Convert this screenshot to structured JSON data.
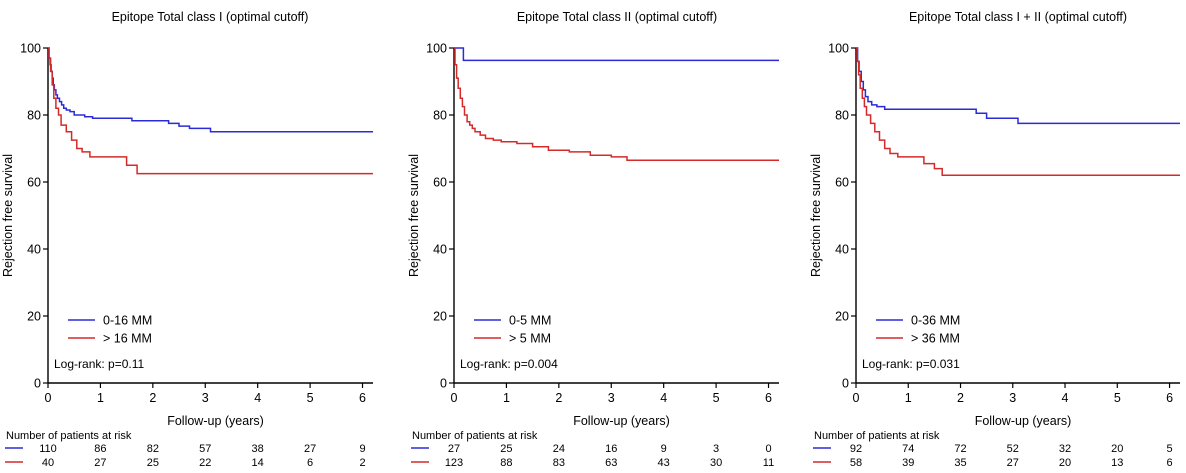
{
  "chart_data": [
    {
      "type": "line",
      "title": "Epitope Total class I (optimal cutoff)",
      "xlabel": "Follow-up (years)",
      "ylabel": "Rejection free survival",
      "xlim": [
        0,
        6.2
      ],
      "ylim": [
        0,
        100
      ],
      "xticks": [
        0,
        1,
        2,
        3,
        4,
        5,
        6
      ],
      "yticks": [
        0,
        20,
        40,
        60,
        80,
        100
      ],
      "grid": false,
      "legend_position": "bottom-left",
      "annotation": "Log-rank: p=0.11",
      "risk_table_title": "Number of patients at risk",
      "series": [
        {
          "name": "0-16 MM",
          "color": "#2b2bd6",
          "x": [
            0,
            0.02,
            0.04,
            0.06,
            0.08,
            0.1,
            0.12,
            0.15,
            0.18,
            0.22,
            0.26,
            0.3,
            0.35,
            0.42,
            0.5,
            0.6,
            0.7,
            0.85,
            1.2,
            1.6,
            2.3,
            2.5,
            2.7,
            3.1,
            6.2
          ],
          "y": [
            100,
            97,
            95,
            93,
            91,
            89,
            87.5,
            86,
            85,
            84,
            83,
            82,
            81.5,
            81,
            80,
            80,
            79.5,
            79,
            79,
            78.3,
            77.5,
            76.7,
            76,
            75,
            75
          ],
          "at_risk": [
            110,
            86,
            82,
            57,
            38,
            27,
            9
          ]
        },
        {
          "name": "> 16 MM",
          "color": "#d42a2a",
          "x": [
            0,
            0.02,
            0.05,
            0.08,
            0.11,
            0.15,
            0.2,
            0.25,
            0.35,
            0.45,
            0.55,
            0.65,
            0.8,
            1.3,
            1.5,
            1.7,
            6.2
          ],
          "y": [
            100,
            97,
            93,
            89,
            85,
            82,
            80,
            77,
            75,
            72.5,
            70,
            69,
            67.5,
            67.5,
            65,
            62.5,
            62.5
          ],
          "at_risk": [
            40,
            27,
            25,
            22,
            14,
            6,
            2
          ]
        }
      ]
    },
    {
      "type": "line",
      "title": "Epitope Total class II (optimal cutoff)",
      "xlabel": "Follow-up (years)",
      "ylabel": "Rejection free survival",
      "xlim": [
        0,
        6.2
      ],
      "ylim": [
        0,
        100
      ],
      "xticks": [
        0,
        1,
        2,
        3,
        4,
        5,
        6
      ],
      "yticks": [
        0,
        20,
        40,
        60,
        80,
        100
      ],
      "grid": false,
      "legend_position": "bottom-left",
      "annotation": "Log-rank: p=0.004",
      "risk_table_title": "Number of patients at risk",
      "series": [
        {
          "name": "0-5 MM",
          "color": "#2b2bd6",
          "x": [
            0,
            0.05,
            0.1,
            0.18,
            6.2
          ],
          "y": [
            100,
            100,
            100,
            96.3,
            96.3
          ],
          "at_risk": [
            27,
            25,
            24,
            16,
            9,
            3,
            0
          ]
        },
        {
          "name": "> 5 MM",
          "color": "#d42a2a",
          "x": [
            0,
            0.02,
            0.05,
            0.08,
            0.12,
            0.16,
            0.2,
            0.25,
            0.3,
            0.35,
            0.4,
            0.5,
            0.6,
            0.75,
            0.9,
            1.2,
            1.5,
            1.8,
            2.2,
            2.6,
            3.0,
            3.3,
            6.2
          ],
          "y": [
            100,
            95,
            91,
            88,
            85,
            82.5,
            80,
            78,
            77,
            76,
            75,
            74,
            73,
            72.5,
            72,
            71.5,
            70.5,
            69.5,
            69,
            68,
            67.5,
            66.5,
            66.5
          ],
          "at_risk": [
            123,
            88,
            83,
            63,
            43,
            30,
            11
          ]
        }
      ]
    },
    {
      "type": "line",
      "title": "Epitope Total class I + II (optimal cutoff)",
      "xlabel": "Follow-up (years)",
      "ylabel": "Rejection free survival",
      "xlim": [
        0,
        6.2
      ],
      "ylim": [
        0,
        100
      ],
      "xticks": [
        0,
        1,
        2,
        3,
        4,
        5,
        6
      ],
      "yticks": [
        0,
        20,
        40,
        60,
        80,
        100
      ],
      "grid": false,
      "legend_position": "bottom-left",
      "annotation": "Log-rank: p=0.031",
      "risk_table_title": "Number of patients at risk",
      "series": [
        {
          "name": "0-36 MM",
          "color": "#2b2bd6",
          "x": [
            0,
            0.03,
            0.06,
            0.1,
            0.14,
            0.18,
            0.23,
            0.3,
            0.4,
            0.55,
            2.3,
            2.5,
            3.1,
            6.2
          ],
          "y": [
            100,
            96,
            93,
            90,
            87.5,
            85.5,
            84,
            83,
            82.5,
            81.7,
            80.5,
            79,
            77.5,
            77.5
          ],
          "at_risk": [
            92,
            74,
            72,
            52,
            32,
            20,
            5
          ]
        },
        {
          "name": "> 36 MM",
          "color": "#d42a2a",
          "x": [
            0,
            0.02,
            0.05,
            0.08,
            0.12,
            0.16,
            0.2,
            0.28,
            0.36,
            0.45,
            0.55,
            0.65,
            0.8,
            1.1,
            1.3,
            1.5,
            1.65,
            6.2
          ],
          "y": [
            100,
            96,
            92,
            88,
            85,
            82.5,
            80,
            77.5,
            75,
            72.5,
            70,
            68.5,
            67.5,
            67.5,
            65.5,
            64,
            62,
            62
          ],
          "at_risk": [
            58,
            39,
            35,
            27,
            20,
            13,
            6
          ]
        }
      ]
    }
  ]
}
